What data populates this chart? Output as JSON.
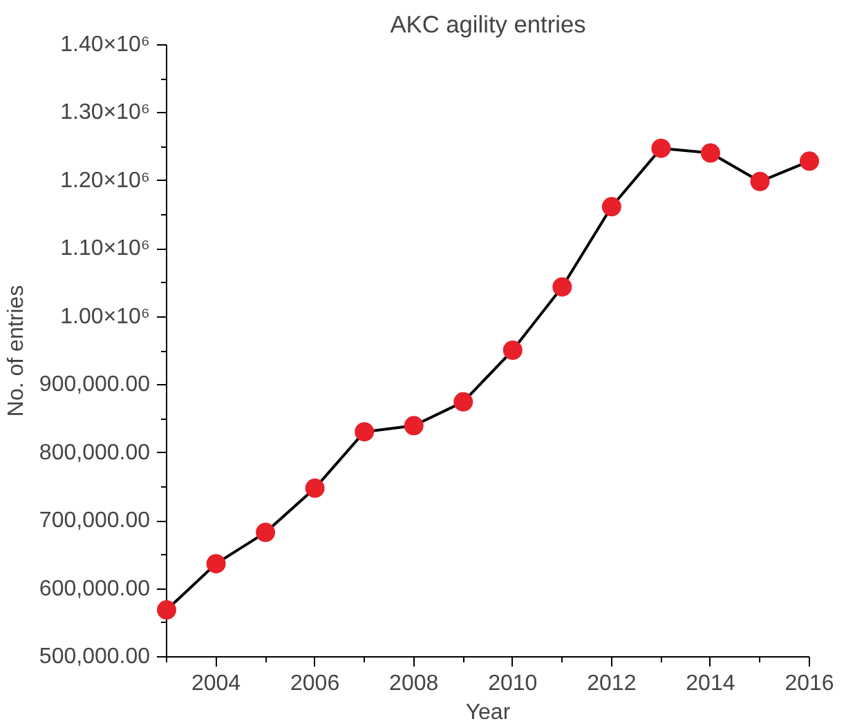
{
  "chart_data": {
    "type": "line",
    "title": "AKC agility entries",
    "xlabel": "Year",
    "ylabel": "No. of entries",
    "x": [
      2003,
      2004,
      2005,
      2006,
      2007,
      2008,
      2009,
      2010,
      2011,
      2012,
      2013,
      2014,
      2015,
      2016
    ],
    "series": [
      {
        "color": "#e8202a",
        "values": [
          569000,
          637000,
          683000,
          748000,
          831000,
          840000,
          875000,
          951000,
          1044000,
          1162000,
          1248000,
          1241000,
          1199000,
          1229000
        ]
      }
    ],
    "xlim": [
      2003,
      2016
    ],
    "xticks": [
      2004,
      2006,
      2008,
      2010,
      2012,
      2014,
      2016
    ],
    "ylim": [
      500000,
      1400000
    ],
    "yticks": [
      {
        "value": 500000,
        "label": "500,000.00"
      },
      {
        "value": 600000,
        "label": "600,000.00"
      },
      {
        "value": 700000,
        "label": "700,000.00"
      },
      {
        "value": 800000,
        "label": "800,000.00"
      },
      {
        "value": 900000,
        "label": "900,000.00"
      },
      {
        "value": 1000000,
        "label": "1.00×10⁶"
      },
      {
        "value": 1100000,
        "label": "1.10×10⁶"
      },
      {
        "value": 1200000,
        "label": "1.20×10⁶"
      },
      {
        "value": 1300000,
        "label": "1.30×10⁶"
      },
      {
        "value": 1400000,
        "label": "1.40×10⁶"
      }
    ],
    "grid": false,
    "marker": "circle",
    "line_style": "solid"
  }
}
